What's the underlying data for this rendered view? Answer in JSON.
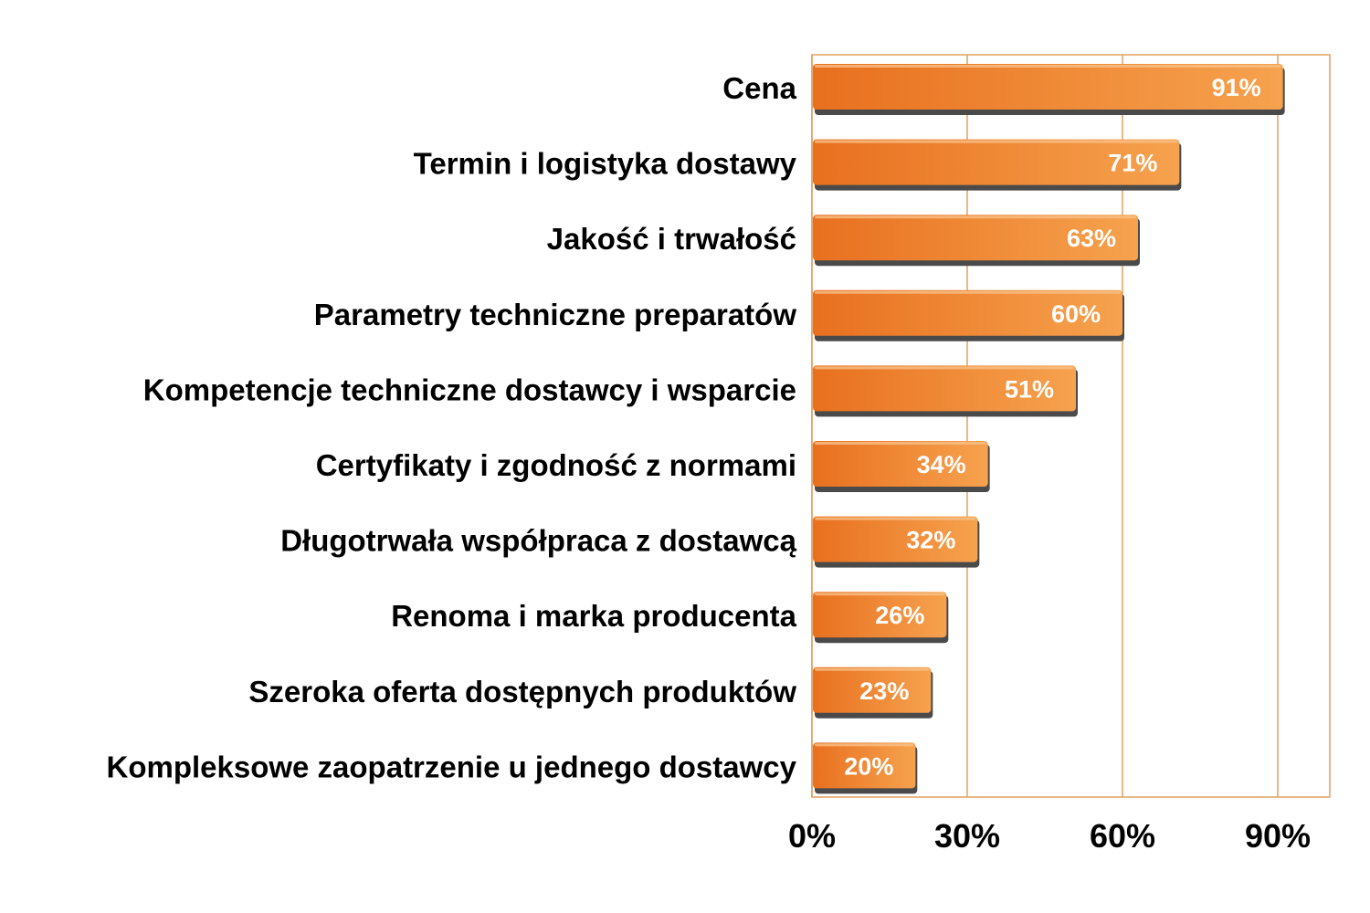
{
  "chart_data": {
    "type": "bar",
    "orientation": "horizontal",
    "categories": [
      "Cena",
      "Termin i logistyka dostawy",
      "Jakość i trwałość",
      "Parametry techniczne preparatów",
      "Kompetencje techniczne dostawcy i wsparcie",
      "Certyfikaty i zgodność z normami",
      "Długotrwała współpraca z dostawcą",
      "Renoma i marka producenta",
      "Szeroka oferta dostępnych produktów",
      "Kompleksowe zaopatrzenie u jednego dostawcy"
    ],
    "values": [
      91,
      71,
      63,
      60,
      51,
      34,
      32,
      26,
      23,
      20
    ],
    "data_labels": [
      "91%",
      "71%",
      "63%",
      "60%",
      "51%",
      "34%",
      "32%",
      "26%",
      "23%",
      "20%"
    ],
    "xlim": [
      0,
      100
    ],
    "x_ticks": [
      0,
      30,
      60,
      90
    ],
    "x_tick_labels": [
      "0%",
      "30%",
      "60%",
      "90%"
    ],
    "grid": true,
    "legend": "none",
    "colors": {
      "bar_light": "#f6a24e",
      "bar_dark": "#e8701f",
      "bar_shadow": "#4a4a4a",
      "gridline": "#e0a060",
      "frame": "#e0a060"
    }
  }
}
